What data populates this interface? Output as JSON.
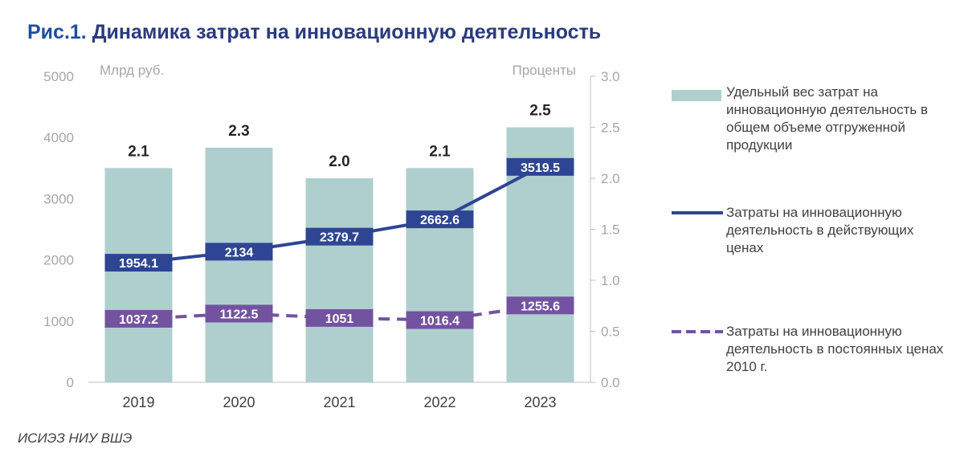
{
  "title": {
    "prefix": "Рис.1.",
    "text": "Динамика затрат на инновационную деятельность"
  },
  "source": "ИСИЭЗ НИУ ВШЭ",
  "colors": {
    "bar": "#afcfcf",
    "current": "#2e4593",
    "constant": "#7353a0",
    "title": "#2a3b7c"
  },
  "legend": [
    {
      "label": "Удельный вес затрат на инновационную деятельность в общем объеме отгруженной продукции",
      "type": "bar"
    },
    {
      "label": "Затраты на инновационную деятельность в действующих ценах",
      "type": "solid-line"
    },
    {
      "label": "Затраты на инновационную деятельность в постоянных ценах 2010 г.",
      "type": "dashed-line"
    }
  ],
  "chart_data": {
    "type": "bar+line",
    "categories": [
      "2019",
      "2020",
      "2021",
      "2022",
      "2023"
    ],
    "left_axis": {
      "label": "Млрд руб.",
      "min": 0,
      "max": 5000,
      "ticks": [
        "0",
        "1000",
        "2000",
        "3000",
        "4000",
        "5000"
      ]
    },
    "right_axis": {
      "label": "Проценты",
      "min": 0,
      "max": 3,
      "ticks": [
        "0.0",
        "0.5",
        "1.0",
        "1.5",
        "2.0",
        "2.5",
        "3.0"
      ]
    },
    "series": [
      {
        "name": "Удельный вес затрат на инновационную деятельность в общем объеме отгруженной продукции",
        "type": "bar",
        "axis": "right",
        "values": [
          2.1,
          2.3,
          2.0,
          2.1,
          2.5
        ],
        "labels": [
          "2.1",
          "2.3",
          "2.0",
          "2.1",
          "2.5"
        ]
      },
      {
        "name": "Затраты на инновационную деятельность в действующих ценах",
        "type": "line",
        "style": "solid",
        "axis": "left",
        "values": [
          1954.1,
          2134,
          2379.7,
          2662.6,
          3519.5
        ],
        "labels": [
          "1954.1",
          "2134",
          "2379.7",
          "2662.6",
          "3519.5"
        ]
      },
      {
        "name": "Затраты на инновационную деятельность в постоянных ценах 2010 г.",
        "type": "line",
        "style": "dashed",
        "axis": "left",
        "values": [
          1037.2,
          1122.5,
          1051,
          1016.4,
          1255.6
        ],
        "labels": [
          "1037.2",
          "1122.5",
          "1051",
          "1016.4",
          "1255.6"
        ]
      }
    ]
  }
}
